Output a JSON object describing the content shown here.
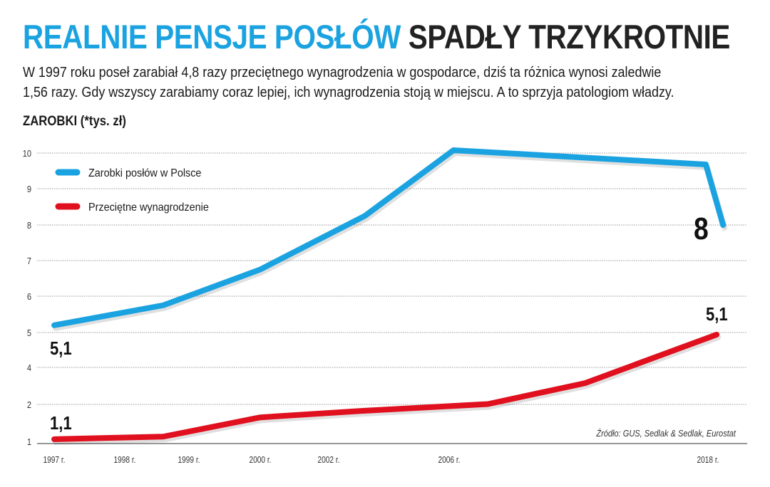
{
  "title": {
    "highlight": "REALNIE PENSJE POSŁÓW",
    "rest": "SPADŁY TRZYKROTNIE"
  },
  "subtitle_lines": [
    "W 1997 roku poseł zarabiał 4,8 razy przeciętnego wynagrodzenia w gospodarce, dziś ta różnica wynosi zaledwie",
    "1,56 razy. Gdy wszyscy zarabiamy coraz lepiej, ich wynagrodzenia stoją w miejscu. A to sprzyja patologiom władzy."
  ],
  "chart_data": {
    "type": "line",
    "ylabel": "ZAROBKI (*tys. zł)",
    "y_ticks": [
      "10",
      "9",
      "8",
      "7",
      "6",
      "5",
      "4",
      "2",
      "1"
    ],
    "y_tick_values": [
      10,
      9,
      8,
      7,
      6,
      5,
      4,
      2,
      1
    ],
    "x_ticks": [
      "1997 r.",
      "1998 r.",
      "1999 r.",
      "2000 r.",
      "2002 r.",
      "2006 r.",
      "2018 r."
    ],
    "x_tick_values": [
      1997,
      1998,
      1999,
      2000,
      2002,
      2006,
      2018
    ],
    "grid": "horizontal dotted",
    "legend": "top-left",
    "series": [
      {
        "name": "Zarobki posłów w Polsce",
        "color": "#1aa3e0",
        "x": [
          1997,
          1998.6,
          2000,
          2003.2,
          2006.2,
          2017.9,
          2018.7
        ],
        "y": [
          5.2,
          5.75,
          6.75,
          8.25,
          10.08,
          9.68,
          8.0
        ]
      },
      {
        "name": "Przeciętne wynagrodzenie",
        "color": "#e0101e",
        "x": [
          1997,
          1998.6,
          2000,
          2003.2,
          2006.2,
          2007.8,
          2012.3,
          2018.4
        ],
        "y": [
          1.06,
          1.13,
          1.65,
          1.83,
          1.96,
          2.02,
          3.15,
          4.94
        ]
      }
    ],
    "annotations": [
      "5,1",
      "1,1",
      "8",
      "5,1"
    ],
    "source": "Źródło: GUS, Sedlak & Sedlak, Eurostat"
  }
}
